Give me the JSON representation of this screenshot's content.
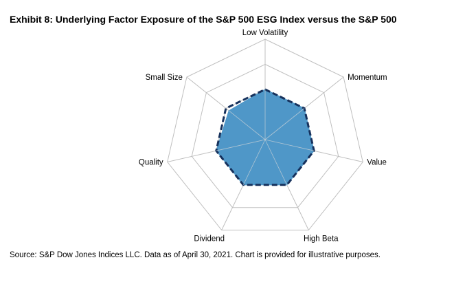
{
  "title": "Exhibit 8: Underlying Factor Exposure of the S&P 500 ESG Index versus the S&P 500",
  "source": "Source: S&P Dow Jones Indices LLC. Data as of April 30, 2021. Chart is provided for illustrative purposes.",
  "colors": {
    "grid": "#bfbfbf",
    "fill": "#4f97c8",
    "dashed_line": "#16315c",
    "text": "#000000"
  },
  "chart_data": {
    "type": "radar",
    "axes": [
      "Low Volatility",
      "Momentum",
      "Value",
      "High Beta",
      "Dividend",
      "Quality",
      "Small Size"
    ],
    "grid_levels": 4,
    "range": [
      0,
      4
    ],
    "series": [
      {
        "style": "filled",
        "values": [
          2.0,
          2.0,
          2.0,
          2.0,
          2.0,
          2.0,
          1.85
        ]
      },
      {
        "style": "dashed",
        "values": [
          2.0,
          2.0,
          2.0,
          2.0,
          2.0,
          2.0,
          2.0
        ]
      }
    ]
  }
}
